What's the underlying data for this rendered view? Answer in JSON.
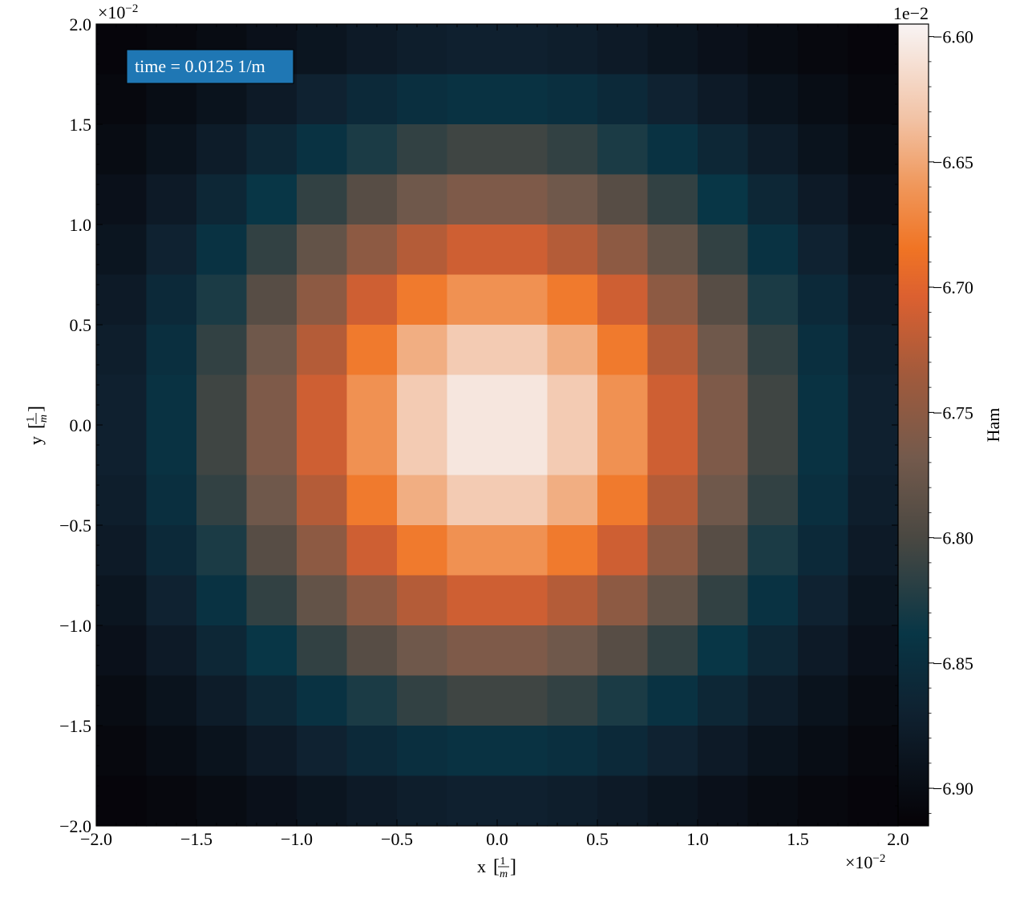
{
  "chart_data": {
    "type": "heatmap",
    "annotation": "time = 0.0125 1/m",
    "annotation_box_color": "#1f77b4",
    "xlabel_prefix": "x",
    "ylabel_prefix": "y",
    "label_unit_num": "1",
    "label_unit_den": "m",
    "xlim": [
      -2.0,
      2.0
    ],
    "ylim": [
      -2.0,
      2.0
    ],
    "x_ticks": [
      "−2.0",
      "−1.5",
      "−1.0",
      "−0.5",
      "0.0",
      "0.5",
      "1.0",
      "1.5",
      "2.0"
    ],
    "y_ticks": [
      "−2.0",
      "−1.5",
      "−1.0",
      "−0.5",
      "0.0",
      "0.5",
      "1.0",
      "1.5",
      "2.0"
    ],
    "x_offset_base": "×10",
    "x_offset_exp": "−2",
    "y_offset_base": "×10",
    "y_offset_exp": "−2",
    "colorbar": {
      "label": "Ham",
      "offset_text": "1e−2",
      "min": -6.915,
      "max": -6.595,
      "ticks": [
        -6.6,
        -6.65,
        -6.7,
        -6.75,
        -6.8,
        -6.85,
        -6.9
      ],
      "tick_labels": [
        "−6.60",
        "−6.65",
        "−6.70",
        "−6.75",
        "−6.80",
        "−6.85",
        "−6.90"
      ],
      "colormap_stops": [
        {
          "v": 0.0,
          "color": "#050206"
        },
        {
          "v": 0.14,
          "color": "#0f2130"
        },
        {
          "v": 0.24,
          "color": "#083646"
        },
        {
          "v": 0.36,
          "color": "#4a4842"
        },
        {
          "v": 0.46,
          "color": "#745a4c"
        },
        {
          "v": 0.56,
          "color": "#a05a3c"
        },
        {
          "v": 0.66,
          "color": "#dc6030"
        },
        {
          "v": 0.72,
          "color": "#f07424"
        },
        {
          "v": 0.8,
          "color": "#f0985c"
        },
        {
          "v": 0.88,
          "color": "#f2c2a4"
        },
        {
          "v": 1.0,
          "color": "#f8f4f4"
        }
      ]
    },
    "grid_size": 16,
    "center_value": -6.6,
    "corner_value": -6.91
  }
}
